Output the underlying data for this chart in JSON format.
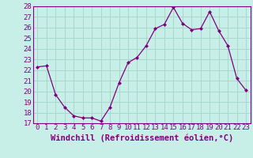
{
  "x": [
    0,
    1,
    2,
    3,
    4,
    5,
    6,
    7,
    8,
    9,
    10,
    11,
    12,
    13,
    14,
    15,
    16,
    17,
    18,
    19,
    20,
    21,
    22,
    23
  ],
  "y": [
    22.3,
    22.4,
    19.7,
    18.5,
    17.7,
    17.5,
    17.5,
    17.2,
    18.5,
    20.8,
    22.7,
    23.2,
    24.3,
    25.9,
    26.3,
    27.9,
    26.4,
    25.8,
    25.9,
    27.5,
    25.7,
    24.3,
    21.2,
    20.1
  ],
  "xlabel": "Windchill (Refroidissement éolien,°C)",
  "ylim": [
    17,
    28
  ],
  "xlim_min": -0.5,
  "xlim_max": 23.5,
  "yticks": [
    17,
    18,
    19,
    20,
    21,
    22,
    23,
    24,
    25,
    26,
    27,
    28
  ],
  "xticks": [
    0,
    1,
    2,
    3,
    4,
    5,
    6,
    7,
    8,
    9,
    10,
    11,
    12,
    13,
    14,
    15,
    16,
    17,
    18,
    19,
    20,
    21,
    22,
    23
  ],
  "line_color": "#800080",
  "marker": "D",
  "marker_size": 2.0,
  "bg_color": "#c8eee8",
  "grid_color": "#a8d8cc",
  "font_color": "#800080",
  "tick_fontsize": 6.5,
  "xlabel_fontsize": 7.5
}
